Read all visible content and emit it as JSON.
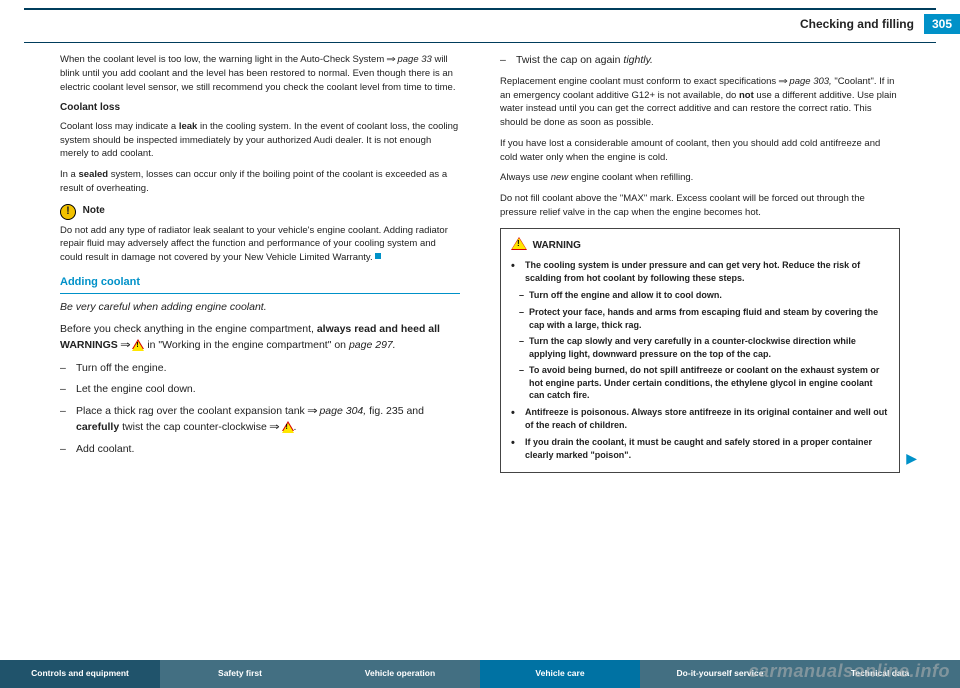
{
  "header": {
    "title": "Checking and filling",
    "page": "305"
  },
  "left": {
    "p1a": "When the coolant level is too low, the warning light in the Auto-Check System ",
    "p1b": " page 33",
    "p1c": " will blink until you add coolant and the level has been restored to normal. Even though there is an electric coolant level sensor, we still recommend you check the coolant level from time to time.",
    "h1": "Coolant loss",
    "p2a": "Coolant loss may indicate a ",
    "p2b": "leak",
    "p2c": " in the cooling system. In the event of coolant loss, the cooling system should be inspected immediately by your authorized Audi dealer. It is not enough merely to add coolant.",
    "p3a": "In a ",
    "p3b": "sealed",
    "p3c": " system, losses can occur only if the boiling point of the coolant is exceeded as a result of overheating.",
    "note_label": "Note",
    "note_text": "Do not add any type of radiator leak sealant to your vehicle's engine coolant. Adding radiator repair fluid may adversely affect the function and performance of your cooling system and could result in damage not covered by your New Vehicle Limited Warranty. ",
    "h2": "Adding coolant",
    "lead": "Be very careful when adding engine coolant.",
    "p4a": "Before you check anything in the engine compartment, ",
    "p4b": "always read and heed all WARNINGS",
    "p4c": " in \"Working in the engine compartment\" on ",
    "p4d": "page 297.",
    "d1": "Turn off the engine.",
    "d2": "Let the engine cool down.",
    "d3a": "Place a thick rag over the coolant expansion tank ",
    "d3b": " page 304,",
    "d3c": " fig. 235 and ",
    "d3d": "carefully",
    "d3e": " twist the cap counter-clockwise ",
    "d4": "Add coolant."
  },
  "right": {
    "d1a": "Twist the cap on again ",
    "d1b": "tightly.",
    "p1a": "Replacement engine coolant must conform to exact specifications ",
    "p1b": " page 303,",
    "p1c": " \"Coolant\". If in an emergency coolant additive G12+ is not available, do ",
    "p1d": "not",
    "p1e": " use a different additive. Use plain water instead until you can get the correct additive and can restore the correct ratio. This should be done as soon as possible.",
    "p2": "If you have lost a considerable amount of coolant, then you should add cold antifreeze and cold water only when the engine is cold.",
    "p3a": "Always use ",
    "p3b": "new",
    "p3c": " engine coolant when refilling.",
    "p4": "Do not fill coolant above the \"MAX\" mark. Excess coolant will be forced out through the pressure relief valve in the cap when the engine becomes hot.",
    "warn_head": "WARNING",
    "w1": "The cooling system is under pressure and can get very hot. Reduce the risk of scalding from hot coolant by following these steps.",
    "w1a": "Turn off the engine and allow it to cool down.",
    "w1b": "Protect your face, hands and arms from escaping fluid and steam by covering the cap with a large, thick rag.",
    "w1c": "Turn the cap slowly and very carefully in a counter-clockwise direction while applying light, downward pressure on the top of the cap.",
    "w1d": "To avoid being burned, do not spill antifreeze or coolant on the exhaust system or hot engine parts. Under certain conditions, the ethylene glycol in engine coolant can catch fire.",
    "w2": "Antifreeze is poisonous. Always store antifreeze in its original container and well out of the reach of children.",
    "w3": "If you drain the coolant, it must be caught and safely stored in a proper container clearly marked \"poison\"."
  },
  "footer": {
    "tabs": [
      {
        "label": "Controls and equipment",
        "bg": "#20536b"
      },
      {
        "label": "Safety first",
        "bg": "#436f82"
      },
      {
        "label": "Vehicle operation",
        "bg": "#436f82"
      },
      {
        "label": "Vehicle care",
        "bg": "#0072a3"
      },
      {
        "label": "Do-it-yourself service",
        "bg": "#436f82"
      },
      {
        "label": "Technical data",
        "bg": "#436f82"
      }
    ]
  },
  "watermark": "carmanualsonline.info"
}
